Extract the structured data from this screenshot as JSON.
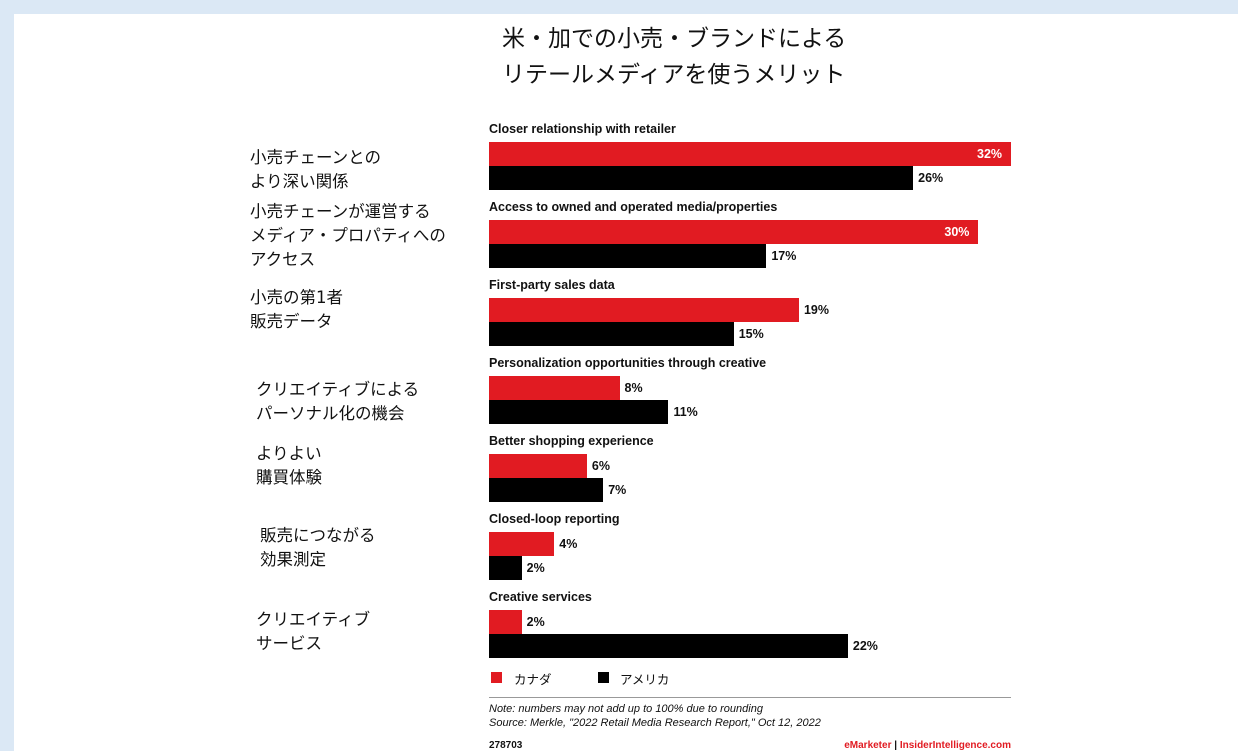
{
  "title_lines": [
    "米・加での小売・ブランドによる",
    "リテールメディアを使うメリット"
  ],
  "chart_data": {
    "type": "bar",
    "orientation": "horizontal",
    "categories": [
      "Closer relationship with retailer",
      "Access to owned and operated media/properties",
      "First-party sales data",
      "Personalization opportunities through creative",
      "Better shopping experience",
      "Closed-loop reporting",
      "Creative services"
    ],
    "categories_jp": [
      "小売チェーンとの\nより深い関係",
      "小売チェーンが運営する\nメディア・プロパティへの\nアクセス",
      "小売の第1者\n販売データ",
      "クリエイティブによる\nパーソナル化の機会",
      "よりよい\n購買体験",
      "販売につながる\n効果測定",
      "クリエイティブ\nサービス"
    ],
    "series": [
      {
        "name": "カナダ",
        "color": "#e11b22",
        "values": [
          32,
          30,
          19,
          8,
          6,
          4,
          2
        ]
      },
      {
        "name": "アメリカ",
        "color": "#000000",
        "values": [
          26,
          17,
          15,
          11,
          7,
          2,
          22
        ]
      }
    ],
    "value_suffix": "%",
    "xlim": [
      0,
      32
    ],
    "grid": false,
    "legend_position": "bottom-left"
  },
  "footer": {
    "note": "Note: numbers may not add up to 100% due to rounding",
    "source": "Source: Merkle, \"2022 Retail Media Research Report,\" Oct 12, 2022",
    "chart_id": "278703",
    "brand_primary": "eMarketer",
    "brand_separator": " | ",
    "brand_secondary": "InsiderIntelligence.com"
  }
}
